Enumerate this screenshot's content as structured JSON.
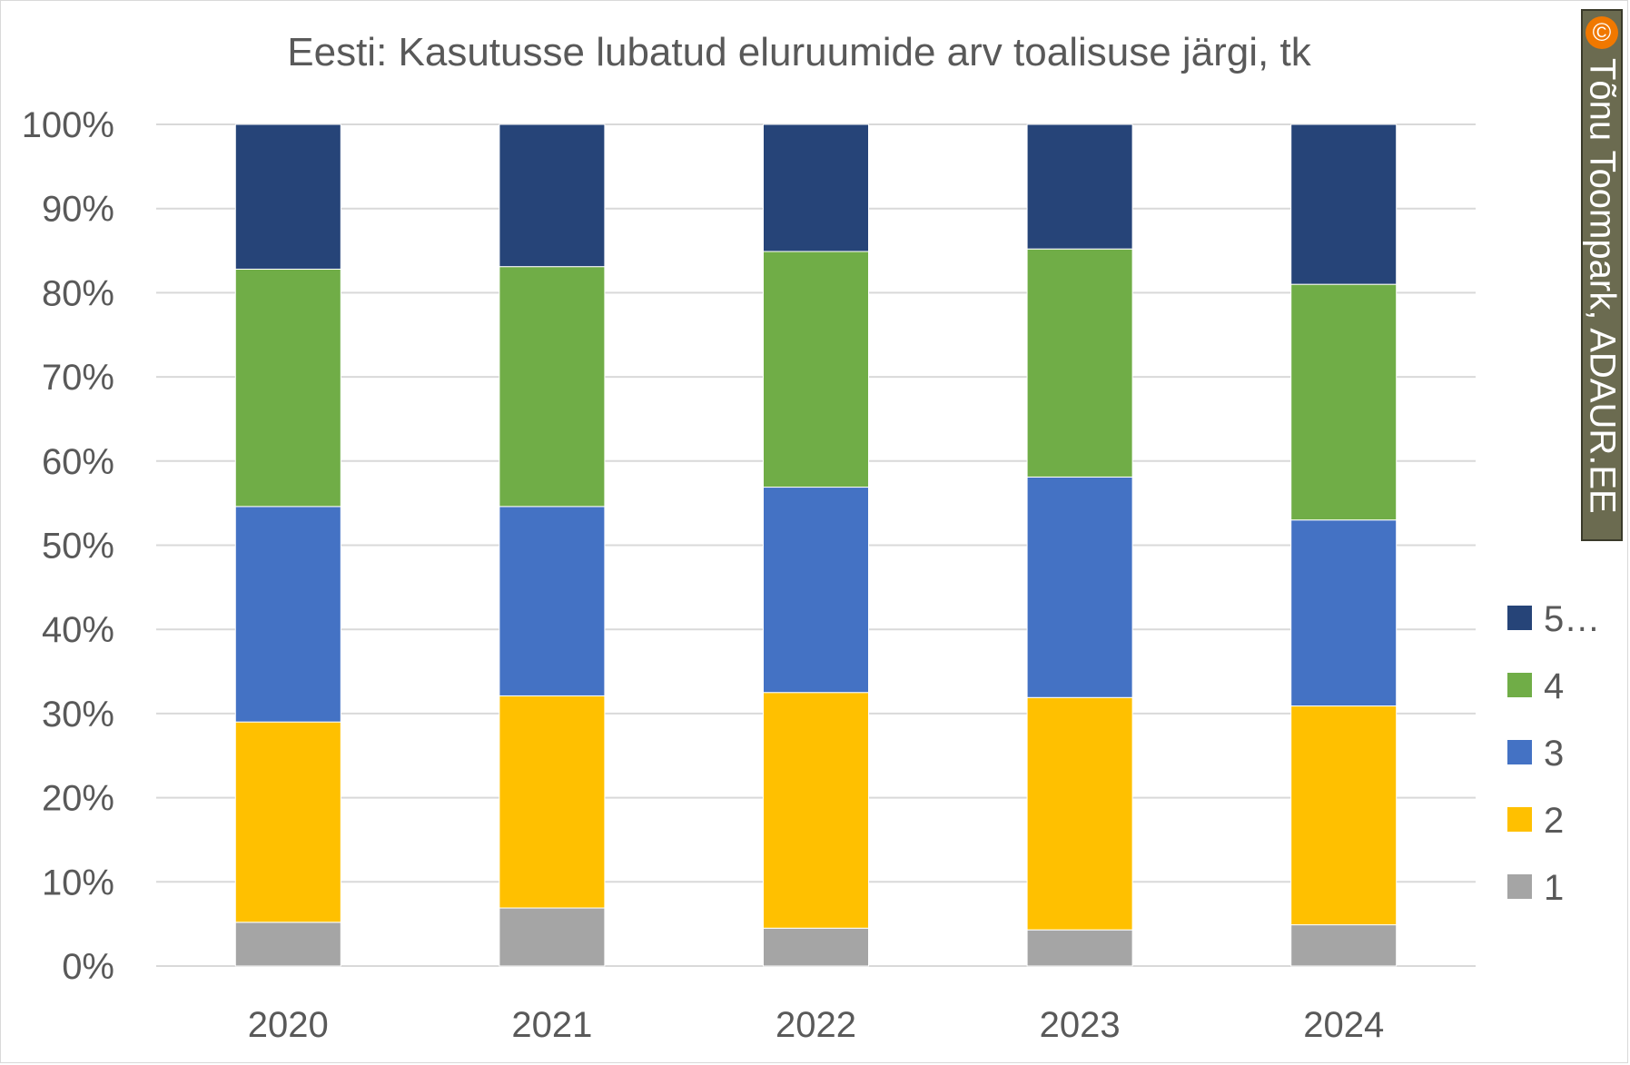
{
  "chart_data": {
    "type": "bar",
    "stacked": true,
    "normalized": true,
    "title": "Eesti: Kasutusse lubatud eluruumide arv toalisuse järgi, tk",
    "xlabel": "",
    "ylabel": "",
    "categories": [
      "2020",
      "2021",
      "2022",
      "2023",
      "2024"
    ],
    "y_ticks": [
      "0%",
      "10%",
      "20%",
      "30%",
      "40%",
      "50%",
      "60%",
      "70%",
      "80%",
      "90%",
      "100%"
    ],
    "ylim": [
      0,
      100
    ],
    "grid": true,
    "legend_position": "right",
    "series": [
      {
        "name": "1",
        "color": "#a5a5a5",
        "values": [
          5.2,
          6.9,
          4.5,
          4.3,
          4.9
        ]
      },
      {
        "name": "2",
        "color": "#ffc000",
        "values": [
          23.8,
          25.2,
          28.0,
          27.6,
          26.0
        ]
      },
      {
        "name": "3",
        "color": "#4472c4",
        "values": [
          25.6,
          22.5,
          24.4,
          26.2,
          22.1
        ]
      },
      {
        "name": "4",
        "color": "#70ad47",
        "values": [
          28.2,
          28.5,
          28.0,
          27.1,
          28.0
        ]
      },
      {
        "name": "5…",
        "color": "#264478",
        "values": [
          17.2,
          16.9,
          15.1,
          14.8,
          19.0
        ]
      }
    ]
  },
  "watermark": {
    "symbol": "©",
    "text": "Tõnu Toompark, ADAUR.EE"
  }
}
